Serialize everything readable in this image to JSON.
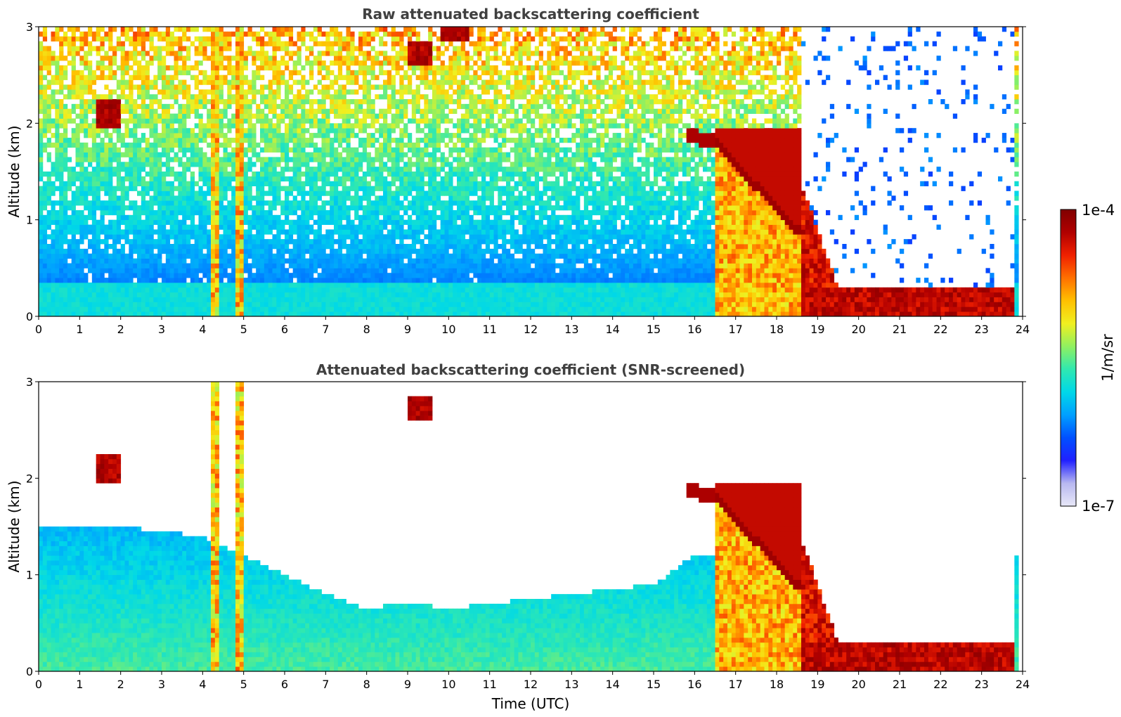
{
  "chart_data": [
    {
      "type": "heatmap",
      "title": "Raw attenuated backscattering coefficient",
      "xlabel": "",
      "ylabel": "Altitude (km)",
      "xlim": [
        0,
        24
      ],
      "ylim": [
        0,
        3
      ],
      "xticks": [
        "0",
        "1",
        "2",
        "3",
        "4",
        "5",
        "6",
        "7",
        "8",
        "9",
        "10",
        "11",
        "12",
        "13",
        "14",
        "15",
        "16",
        "17",
        "18",
        "19",
        "20",
        "21",
        "22",
        "23",
        "24"
      ],
      "yticks": [
        "0",
        "1",
        "2",
        "3"
      ],
      "screened": false,
      "features": [
        {
          "kind": "background",
          "desc": "noisy signal increasing with altitude, sparse after 18.6 UTC"
        },
        {
          "kind": "precip_streak",
          "x": [
            4.2,
            4.4
          ],
          "y": [
            0,
            3
          ]
        },
        {
          "kind": "precip_streak",
          "x": [
            4.8,
            5.0
          ],
          "y": [
            0,
            3
          ]
        },
        {
          "kind": "cloud_region",
          "x": [
            16.5,
            18.6
          ],
          "y": [
            0,
            1.9
          ]
        },
        {
          "kind": "boundary_layer_cloud",
          "x": [
            18.6,
            23.8
          ],
          "top_km": 0.3
        },
        {
          "kind": "cloud_patch",
          "x": [
            1.4,
            2.0
          ],
          "y": [
            1.95,
            2.25
          ]
        },
        {
          "kind": "cloud_patch",
          "x": [
            9.0,
            9.6
          ],
          "y": [
            2.6,
            2.85
          ]
        },
        {
          "kind": "cloud_patch",
          "x": [
            9.8,
            10.5
          ],
          "y": [
            2.85,
            3.0
          ]
        }
      ]
    },
    {
      "type": "heatmap",
      "title": "Attenuated backscattering coefficient (SNR-screened)",
      "xlabel": "Time (UTC)",
      "ylabel": "Altitude (km)",
      "xlim": [
        0,
        24
      ],
      "ylim": [
        0,
        3
      ],
      "xticks": [
        "0",
        "1",
        "2",
        "3",
        "4",
        "5",
        "6",
        "7",
        "8",
        "9",
        "10",
        "11",
        "12",
        "13",
        "14",
        "15",
        "16",
        "17",
        "18",
        "19",
        "20",
        "21",
        "22",
        "23",
        "24"
      ],
      "yticks": [
        "0",
        "1",
        "2",
        "3"
      ],
      "screened": true,
      "features": [
        {
          "kind": "boundary_layer_top",
          "profile_km": [
            [
              0,
              1.5
            ],
            [
              2,
              1.5
            ],
            [
              4,
              1.4
            ],
            [
              5,
              1.2
            ],
            [
              6,
              1.0
            ],
            [
              7,
              0.8
            ],
            [
              8,
              0.65
            ],
            [
              9,
              0.72
            ],
            [
              10,
              0.65
            ],
            [
              11,
              0.7
            ],
            [
              12,
              0.75
            ],
            [
              13,
              0.8
            ],
            [
              14,
              0.85
            ],
            [
              15,
              0.9
            ],
            [
              16,
              1.2
            ]
          ]
        },
        {
          "kind": "precip_streak",
          "x": [
            4.2,
            4.4
          ],
          "y": [
            0,
            3
          ]
        },
        {
          "kind": "precip_streak",
          "x": [
            4.8,
            5.0
          ],
          "y": [
            0,
            3
          ]
        },
        {
          "kind": "cloud_region",
          "x": [
            16.5,
            18.6
          ],
          "y": [
            0,
            1.9
          ]
        },
        {
          "kind": "boundary_layer_cloud",
          "x": [
            18.6,
            23.8
          ],
          "top_km": 0.3
        },
        {
          "kind": "cloud_patch",
          "x": [
            1.4,
            2.0
          ],
          "y": [
            1.95,
            2.25
          ]
        },
        {
          "kind": "cloud_patch",
          "x": [
            9.0,
            9.6
          ],
          "y": [
            2.6,
            2.85
          ]
        }
      ]
    }
  ],
  "colorbar": {
    "label": "1/m/sr",
    "max_label": "1e-4",
    "min_label": "1e-7",
    "range": [
      1e-07,
      0.0001
    ],
    "scale": "log",
    "colormap_stops": [
      "#e8e8f8",
      "#b8b8f0",
      "#2020ff",
      "#0050ff",
      "#00a0ff",
      "#00d8e8",
      "#30e8b0",
      "#90f060",
      "#f0f020",
      "#ffc000",
      "#ff7000",
      "#f02000",
      "#b00000",
      "#800000"
    ]
  }
}
